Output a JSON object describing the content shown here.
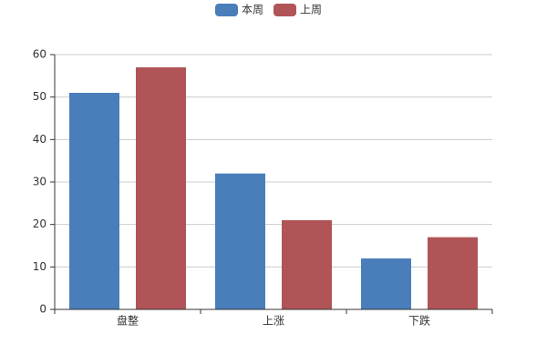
{
  "chart_data": {
    "type": "bar",
    "categories": [
      "盘整",
      "上涨",
      "下跌"
    ],
    "series": [
      {
        "name": "本周",
        "color": "#4a7ebb",
        "values": [
          51,
          32,
          12
        ]
      },
      {
        "name": "上周",
        "color": "#b05457",
        "values": [
          57,
          21,
          17
        ]
      }
    ],
    "ylim": [
      0,
      60
    ],
    "yticks": [
      0,
      10,
      20,
      30,
      40,
      50,
      60
    ],
    "grid": true,
    "legend": "top"
  }
}
